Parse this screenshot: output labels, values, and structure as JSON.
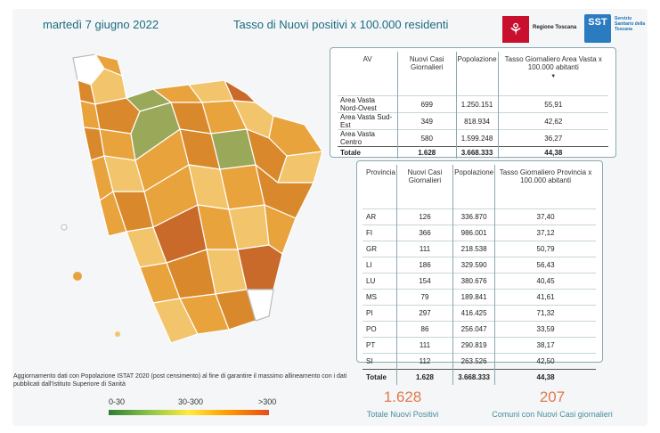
{
  "header": {
    "date": "martedì 7 giugno 2022",
    "title": "Tasso di Nuovi positivi x 100.000 residenti",
    "logo_rt": "Regione Toscana",
    "logo_sst": "SST",
    "logo_sst_text": "Servizio Sanitario della Toscana"
  },
  "av_table": {
    "headers": [
      "AV",
      "Nuovi Casi Giornalieri",
      "Popolazione",
      "Tasso Giornaliero Area Vasta x 100.000 abitanti"
    ],
    "rows": [
      [
        "Area Vasta Nord-Ovest",
        "699",
        "1.250.151",
        "55,91"
      ],
      [
        "Area Vasta Sud-Est",
        "349",
        "818.934",
        "42,62"
      ],
      [
        "Area Vasta Centro",
        "580",
        "1.599.248",
        "36,27"
      ]
    ],
    "total": [
      "Totale",
      "1.628",
      "3.668.333",
      "44,38"
    ]
  },
  "prov_table": {
    "headers": [
      "Provincia",
      "Nuovi Casi Giornalieri",
      "Popolazione",
      "Tasso Giornaliero Provincia x 100.000 abitanti"
    ],
    "rows": [
      [
        "AR",
        "126",
        "336.870",
        "37,40"
      ],
      [
        "FI",
        "366",
        "986.001",
        "37,12"
      ],
      [
        "GR",
        "111",
        "218.538",
        "50,79"
      ],
      [
        "LI",
        "186",
        "329.590",
        "56,43"
      ],
      [
        "LU",
        "154",
        "380.676",
        "40,45"
      ],
      [
        "MS",
        "79",
        "189.841",
        "41,61"
      ],
      [
        "PI",
        "297",
        "416.425",
        "71,32"
      ],
      [
        "PO",
        "86",
        "256.047",
        "33,59"
      ],
      [
        "PT",
        "111",
        "290.819",
        "38,17"
      ],
      [
        "SI",
        "112",
        "263.526",
        "42,50"
      ]
    ],
    "total": [
      "Totale",
      "1.628",
      "3.668.333",
      "44,38"
    ]
  },
  "footnote": "Aggiornamento dati con Popolazione ISTAT 2020 (post censimento) al fine di garantire il massimo allineamento con i dati pubblicati dall'Istituto Superiore di Sanità",
  "legend": {
    "low": "0-30",
    "mid": "30-300",
    "high": ">300",
    "colors": [
      "#2e7d32",
      "#8bc34a",
      "#ffeb3b",
      "#ff9800",
      "#e64a19"
    ]
  },
  "kpis": {
    "total_value": "1.628",
    "total_label": "Totale Nuovi Positivi",
    "comuni_value": "207",
    "comuni_label": "Comuni con Nuovi Casi giornalieri"
  },
  "map_colors": {
    "none": "#ffffff",
    "low": "#e8a33d",
    "mid": "#d9892c",
    "light": "#f2c46b",
    "green": "#9aa85a",
    "dark": "#c96a2a"
  }
}
